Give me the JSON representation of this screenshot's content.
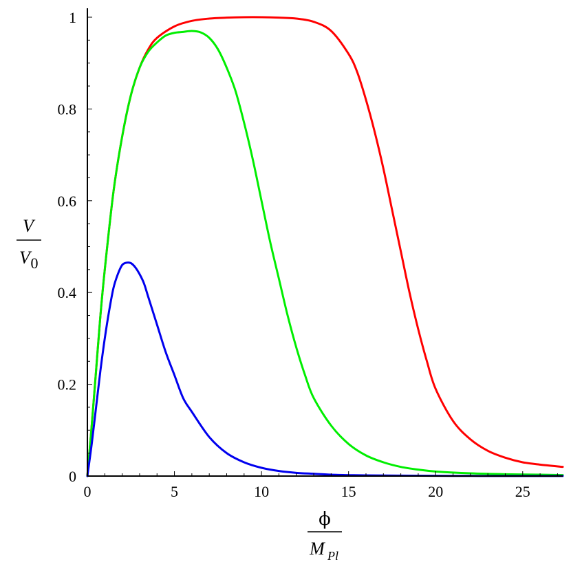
{
  "chart_data": {
    "type": "line",
    "title": "",
    "xlabel": {
      "numerator": "ϕ",
      "denominator_base": "M",
      "denominator_sub": "Pl"
    },
    "ylabel": {
      "numerator": "V",
      "denominator_base": "V",
      "denominator_sub": "0"
    },
    "xlim": [
      0,
      27.3
    ],
    "ylim": [
      0,
      1.0
    ],
    "x_ticks": [
      0,
      5,
      10,
      15,
      20,
      25
    ],
    "x_tick_labels": [
      "0",
      "5",
      "10",
      "15",
      "20",
      "25"
    ],
    "y_ticks": [
      0,
      0.2,
      0.4,
      0.6,
      0.8,
      1
    ],
    "y_tick_labels": [
      "0",
      "0.2",
      "0.4",
      "0.6",
      "0.8",
      "1"
    ],
    "grid": false,
    "legend": "none",
    "series": [
      {
        "color": "#ff0000",
        "x": [
          0,
          0.25,
          0.5,
          0.75,
          1,
          1.5,
          2,
          2.5,
          3,
          3.5,
          4,
          5,
          6,
          7,
          8,
          9,
          10,
          11,
          12,
          13,
          14,
          15,
          15.5,
          16,
          16.5,
          17,
          17.5,
          18,
          18.5,
          19,
          19.5,
          20,
          21,
          22,
          23,
          24,
          25,
          26,
          27.3
        ],
        "y": [
          0,
          0.11,
          0.23,
          0.35,
          0.45,
          0.62,
          0.74,
          0.83,
          0.89,
          0.93,
          0.955,
          0.98,
          0.992,
          0.997,
          0.999,
          1.0,
          1.0,
          0.999,
          0.997,
          0.99,
          0.97,
          0.92,
          0.88,
          0.82,
          0.75,
          0.67,
          0.58,
          0.49,
          0.4,
          0.32,
          0.25,
          0.19,
          0.12,
          0.08,
          0.055,
          0.04,
          0.03,
          0.025,
          0.02
        ]
      },
      {
        "color": "#00ee00",
        "x": [
          0,
          0.25,
          0.5,
          0.75,
          1,
          1.5,
          2,
          2.5,
          3,
          3.5,
          4,
          4.5,
          5,
          5.5,
          6,
          6.5,
          7,
          7.5,
          8,
          8.5,
          9,
          9.5,
          10,
          10.5,
          11,
          11.5,
          12,
          12.5,
          13,
          14,
          15,
          16,
          17,
          18,
          19,
          20,
          22,
          24,
          26,
          27.3
        ],
        "y": [
          0,
          0.11,
          0.23,
          0.35,
          0.45,
          0.62,
          0.74,
          0.83,
          0.89,
          0.925,
          0.945,
          0.96,
          0.966,
          0.968,
          0.97,
          0.967,
          0.955,
          0.93,
          0.89,
          0.84,
          0.77,
          0.69,
          0.6,
          0.51,
          0.43,
          0.35,
          0.28,
          0.22,
          0.17,
          0.11,
          0.07,
          0.045,
          0.03,
          0.02,
          0.014,
          0.01,
          0.006,
          0.004,
          0.003,
          0.002
        ]
      },
      {
        "color": "#0000ee",
        "x": [
          0,
          0.25,
          0.5,
          0.75,
          1,
          1.25,
          1.5,
          1.75,
          2,
          2.25,
          2.5,
          2.75,
          3,
          3.25,
          3.5,
          4,
          4.5,
          5,
          5.5,
          6,
          7,
          8,
          9,
          10,
          11,
          12,
          13,
          14,
          15,
          16,
          18,
          20,
          22,
          24,
          27.3
        ],
        "y": [
          0,
          0.07,
          0.15,
          0.23,
          0.3,
          0.36,
          0.41,
          0.44,
          0.46,
          0.465,
          0.464,
          0.455,
          0.44,
          0.42,
          0.39,
          0.33,
          0.27,
          0.22,
          0.17,
          0.14,
          0.085,
          0.05,
          0.03,
          0.018,
          0.011,
          0.007,
          0.005,
          0.003,
          0.002,
          0.0015,
          0.001,
          0.0005,
          0.0003,
          0.0002,
          0.0001
        ]
      }
    ]
  }
}
